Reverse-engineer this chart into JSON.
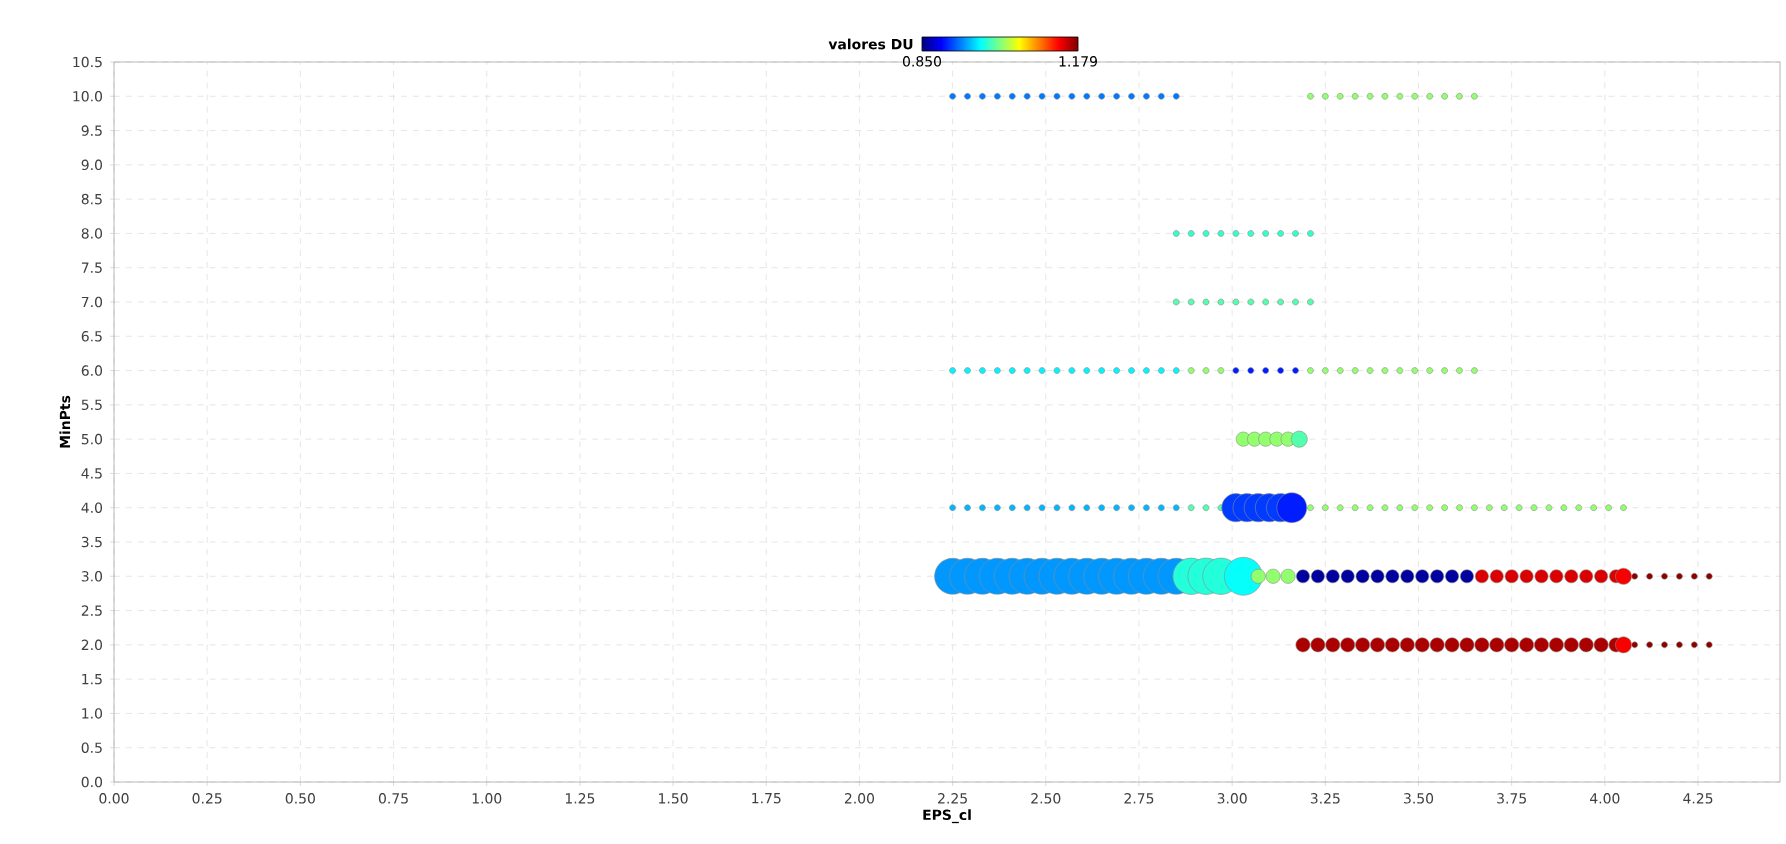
{
  "chart_data": {
    "type": "bubble",
    "xlabel": "EPS_cl",
    "ylabel": "MinPts",
    "clabel": "valores DU",
    "clim": [
      0.85,
      1.179
    ],
    "cticks": [
      {
        "value": 0.85,
        "label": "0.850"
      },
      1.179
    ],
    "xlim": [
      0,
      4.47
    ],
    "ylim": [
      0,
      10.5
    ],
    "xticks": [
      {
        "value": 0,
        "label": "0.00"
      },
      {
        "value": 0.25,
        "label": "0.25"
      },
      {
        "value": 0.5,
        "label": "0.50"
      },
      {
        "value": 0.75,
        "label": "0.75"
      },
      {
        "value": 1,
        "label": "1.00"
      },
      {
        "value": 1.25,
        "label": "1.25"
      },
      {
        "value": 1.5,
        "label": "1.50"
      },
      {
        "value": 1.75,
        "label": "1.75"
      },
      {
        "value": 2,
        "label": "2.00"
      },
      {
        "value": 2.25,
        "label": "2.25"
      },
      {
        "value": 2.5,
        "label": "2.50"
      },
      {
        "value": 2.75,
        "label": "2.75"
      },
      {
        "value": 3,
        "label": "3.00"
      },
      {
        "value": 3.25,
        "label": "3.25"
      },
      {
        "value": 3.5,
        "label": "3.50"
      },
      {
        "value": 3.75,
        "label": "3.75"
      },
      {
        "value": 4,
        "label": "4.00"
      },
      {
        "value": 4.25,
        "label": "4.25"
      }
    ],
    "yticks": [
      {
        "value": 0,
        "label": "0.0"
      },
      0.5,
      {
        "value": 1,
        "label": "1.0"
      },
      1.5,
      {
        "value": 2,
        "label": "2.0"
      },
      2.5,
      {
        "value": 3,
        "label": "3.0"
      },
      3.5,
      {
        "value": 4,
        "label": "4.0"
      },
      4.5,
      {
        "value": 5,
        "label": "5.0"
      },
      5.5,
      {
        "value": 6,
        "label": "6.0"
      },
      6.5,
      {
        "value": 7,
        "label": "7.0"
      },
      7.5,
      {
        "value": 8,
        "label": "8.0"
      },
      8.5,
      {
        "value": 9,
        "label": "9.0"
      },
      9.5,
      {
        "value": 10,
        "label": "10.0"
      },
      10.5
    ],
    "grid": true,
    "marker": "circle",
    "series": [
      {
        "x": [
          2.25,
          2.29,
          2.33,
          2.37,
          2.41,
          2.45,
          2.49,
          2.53,
          2.57,
          2.61,
          2.65,
          2.69,
          2.73,
          2.77,
          2.81,
          2.85
        ],
        "values": [
          10,
          10,
          10,
          10,
          10,
          10,
          10,
          10,
          10,
          10,
          10,
          10,
          10,
          10,
          10,
          10
        ],
        "sizes": [
          0.025,
          0.025,
          0.025,
          0.025,
          0.025,
          0.025,
          0.025,
          0.025,
          0.025,
          0.025,
          0.025,
          0.025,
          0.025,
          0.025,
          0.025,
          0.025
        ],
        "cvalues": [
          0.93,
          0.93,
          0.93,
          0.93,
          0.93,
          0.93,
          0.93,
          0.93,
          0.93,
          0.93,
          0.93,
          0.93,
          0.93,
          0.93,
          0.93,
          0.93
        ]
      },
      {
        "x": [
          3.21,
          3.25,
          3.29,
          3.33,
          3.37,
          3.41,
          3.45,
          3.49,
          3.53,
          3.57,
          3.61,
          3.65
        ],
        "values": [
          10,
          10,
          10,
          10,
          10,
          10,
          10,
          10,
          10,
          10,
          10,
          10
        ],
        "sizes": [
          0.025,
          0.025,
          0.025,
          0.025,
          0.025,
          0.025,
          0.025,
          0.025,
          0.025,
          0.025,
          0.025,
          0.025
        ],
        "cvalues": [
          1.02,
          1.02,
          1.02,
          1.02,
          1.02,
          1.02,
          1.02,
          1.02,
          1.02,
          1.02,
          1.02,
          1.02
        ]
      },
      {
        "x": [
          2.85,
          2.89,
          2.93,
          2.97,
          3.01,
          3.05,
          3.09,
          3.13,
          3.17,
          3.21
        ],
        "values": [
          8,
          8,
          8,
          8,
          8,
          8,
          8,
          8,
          8,
          8
        ],
        "sizes": [
          0.025,
          0.025,
          0.025,
          0.025,
          0.025,
          0.025,
          0.025,
          0.025,
          0.025,
          0.025
        ],
        "cvalues": [
          0.99,
          0.99,
          0.99,
          0.99,
          0.99,
          0.99,
          0.99,
          0.99,
          0.99,
          0.99
        ]
      },
      {
        "x": [
          2.85,
          2.89,
          2.93,
          2.97,
          3.01,
          3.05,
          3.09,
          3.13,
          3.17,
          3.21
        ],
        "values": [
          7,
          7,
          7,
          7,
          7,
          7,
          7,
          7,
          7,
          7
        ],
        "sizes": [
          0.025,
          0.025,
          0.025,
          0.025,
          0.025,
          0.025,
          0.025,
          0.025,
          0.025,
          0.025
        ],
        "cvalues": [
          1.0,
          1.0,
          1.0,
          1.0,
          1.0,
          1.0,
          1.0,
          1.0,
          1.0,
          1.0
        ]
      },
      {
        "x": [
          2.25,
          2.29,
          2.33,
          2.37,
          2.41,
          2.45,
          2.49,
          2.53,
          2.57,
          2.61,
          2.65,
          2.69,
          2.73,
          2.77,
          2.81,
          2.85
        ],
        "values": [
          6,
          6,
          6,
          6,
          6,
          6,
          6,
          6,
          6,
          6,
          6,
          6,
          6,
          6,
          6,
          6
        ],
        "sizes": [
          0.025,
          0.025,
          0.025,
          0.025,
          0.025,
          0.025,
          0.025,
          0.025,
          0.025,
          0.025,
          0.025,
          0.025,
          0.025,
          0.025,
          0.025,
          0.025
        ],
        "cvalues": [
          0.97,
          0.97,
          0.97,
          0.97,
          0.97,
          0.97,
          0.97,
          0.97,
          0.97,
          0.97,
          0.97,
          0.97,
          0.97,
          0.97,
          0.97,
          0.97
        ]
      },
      {
        "x": [
          2.89,
          2.93,
          2.97
        ],
        "values": [
          6,
          6,
          6
        ],
        "sizes": [
          0.025,
          0.025,
          0.025
        ],
        "cvalues": [
          1.02,
          1.02,
          1.02
        ]
      },
      {
        "x": [
          3.01,
          3.05,
          3.09,
          3.13,
          3.17
        ],
        "values": [
          6,
          6,
          6,
          6,
          6
        ],
        "sizes": [
          0.025,
          0.025,
          0.025,
          0.025,
          0.025
        ],
        "cvalues": [
          0.9,
          0.9,
          0.9,
          0.9,
          0.9
        ]
      },
      {
        "x": [
          3.21,
          3.25,
          3.29,
          3.33,
          3.37,
          3.41,
          3.45,
          3.49,
          3.53,
          3.57,
          3.61,
          3.65
        ],
        "values": [
          6,
          6,
          6,
          6,
          6,
          6,
          6,
          6,
          6,
          6,
          6,
          6
        ],
        "sizes": [
          0.025,
          0.025,
          0.025,
          0.025,
          0.025,
          0.025,
          0.025,
          0.025,
          0.025,
          0.025,
          0.025,
          0.025
        ],
        "cvalues": [
          1.02,
          1.02,
          1.02,
          1.02,
          1.02,
          1.02,
          1.02,
          1.02,
          1.02,
          1.02,
          1.02,
          1.02
        ]
      },
      {
        "x": [
          3.03,
          3.06,
          3.09,
          3.12,
          3.15
        ],
        "values": [
          5,
          5,
          5,
          5,
          5
        ],
        "sizes": [
          0.14,
          0.14,
          0.14,
          0.14,
          0.14
        ],
        "cvalues": [
          1.02,
          1.02,
          1.02,
          1.02,
          1.02
        ]
      },
      {
        "x": [
          3.18
        ],
        "values": [
          5
        ],
        "sizes": [
          0.18
        ],
        "cvalues": [
          1.0
        ]
      },
      {
        "x": [
          2.25,
          2.29,
          2.33,
          2.37,
          2.41,
          2.45,
          2.49,
          2.53,
          2.57,
          2.61,
          2.65,
          2.69,
          2.73,
          2.77,
          2.81,
          2.85
        ],
        "values": [
          4,
          4,
          4,
          4,
          4,
          4,
          4,
          4,
          4,
          4,
          4,
          4,
          4,
          4,
          4,
          4
        ],
        "sizes": [
          0.025,
          0.025,
          0.025,
          0.025,
          0.025,
          0.025,
          0.025,
          0.025,
          0.025,
          0.025,
          0.025,
          0.025,
          0.025,
          0.025,
          0.025,
          0.025
        ],
        "cvalues": [
          0.95,
          0.95,
          0.95,
          0.95,
          0.95,
          0.95,
          0.95,
          0.95,
          0.95,
          0.95,
          0.95,
          0.95,
          0.95,
          0.95,
          0.95,
          0.95
        ]
      },
      {
        "x": [
          2.89,
          2.93,
          2.97
        ],
        "values": [
          4,
          4,
          4
        ],
        "sizes": [
          0.025,
          0.025,
          0.025
        ],
        "cvalues": [
          1.0,
          1.0,
          1.0
        ]
      },
      {
        "x": [
          3.21,
          3.25,
          3.29,
          3.33,
          3.37,
          3.41,
          3.45,
          3.49,
          3.53,
          3.57,
          3.61,
          3.65,
          3.69,
          3.73,
          3.77,
          3.81,
          3.85,
          3.89,
          3.93,
          3.97,
          4.01,
          4.05
        ],
        "values": [
          4,
          4,
          4,
          4,
          4,
          4,
          4,
          4,
          4,
          4,
          4,
          4,
          4,
          4,
          4,
          4,
          4,
          4,
          4,
          4,
          4,
          4
        ],
        "sizes": [
          0.025,
          0.025,
          0.025,
          0.025,
          0.025,
          0.025,
          0.025,
          0.025,
          0.025,
          0.025,
          0.025,
          0.025,
          0.025,
          0.025,
          0.025,
          0.025,
          0.025,
          0.025,
          0.025,
          0.025,
          0.025,
          0.025
        ],
        "cvalues": [
          1.02,
          1.02,
          1.02,
          1.02,
          1.02,
          1.02,
          1.02,
          1.02,
          1.02,
          1.02,
          1.02,
          1.02,
          1.02,
          1.02,
          1.02,
          1.02,
          1.02,
          1.02,
          1.02,
          1.02,
          1.02,
          1.02
        ]
      },
      {
        "x": [
          3.01,
          3.04,
          3.07,
          3.1,
          3.13
        ],
        "values": [
          4,
          4,
          4,
          4,
          4
        ],
        "sizes": [
          0.55,
          0.55,
          0.55,
          0.55,
          0.55
        ],
        "cvalues": [
          0.91,
          0.91,
          0.91,
          0.91,
          0.91
        ]
      },
      {
        "x": [
          3.16
        ],
        "values": [
          4
        ],
        "sizes": [
          0.62
        ],
        "cvalues": [
          0.9
        ]
      },
      {
        "x": [
          2.25,
          2.29,
          2.33,
          2.37,
          2.41,
          2.45,
          2.49,
          2.53,
          2.57,
          2.61,
          2.65,
          2.69,
          2.73,
          2.77,
          2.81,
          2.85
        ],
        "values": [
          3,
          3,
          3,
          3,
          3,
          3,
          3,
          3,
          3,
          3,
          3,
          3,
          3,
          3,
          3,
          3
        ],
        "sizes": [
          0.9,
          0.9,
          0.9,
          0.9,
          0.9,
          0.9,
          0.9,
          0.9,
          0.9,
          0.9,
          0.9,
          0.9,
          0.9,
          0.9,
          0.9,
          0.9
        ],
        "cvalues": [
          0.94,
          0.94,
          0.94,
          0.94,
          0.94,
          0.94,
          0.94,
          0.94,
          0.94,
          0.94,
          0.94,
          0.94,
          0.94,
          0.94,
          0.94,
          0.94
        ]
      },
      {
        "x": [
          2.89,
          2.93,
          2.97
        ],
        "values": [
          3,
          3,
          3
        ],
        "sizes": [
          0.92,
          0.92,
          0.92
        ],
        "cvalues": [
          0.985,
          0.985,
          0.985
        ]
      },
      {
        "x": [
          3.03
        ],
        "values": [
          3
        ],
        "sizes": [
          1
        ],
        "cvalues": [
          0.975
        ]
      },
      {
        "x": [
          3.07,
          3.11,
          3.15
        ],
        "values": [
          3,
          3,
          3
        ],
        "sizes": [
          0.14,
          0.14,
          0.14
        ],
        "cvalues": [
          1.02,
          1.02,
          1.02
        ]
      },
      {
        "x": [
          3.19,
          3.23,
          3.27,
          3.31,
          3.35,
          3.39,
          3.43,
          3.47,
          3.51,
          3.55,
          3.59,
          3.63
        ],
        "values": [
          3,
          3,
          3,
          3,
          3,
          3,
          3,
          3,
          3,
          3,
          3,
          3
        ],
        "sizes": [
          0.12,
          0.12,
          0.12,
          0.12,
          0.12,
          0.12,
          0.12,
          0.12,
          0.12,
          0.12,
          0.12,
          0.12
        ],
        "cvalues": [
          0.86,
          0.86,
          0.86,
          0.86,
          0.86,
          0.86,
          0.86,
          0.86,
          0.86,
          0.86,
          0.86,
          0.86
        ]
      },
      {
        "x": [
          3.67,
          3.71,
          3.75,
          3.79,
          3.83,
          3.87,
          3.91,
          3.95,
          3.99,
          4.03
        ],
        "values": [
          3,
          3,
          3,
          3,
          3,
          3,
          3,
          3,
          3,
          3
        ],
        "sizes": [
          0.12,
          0.12,
          0.12,
          0.12,
          0.12,
          0.12,
          0.12,
          0.12,
          0.12,
          0.12
        ],
        "cvalues": [
          1.15,
          1.15,
          1.15,
          1.15,
          1.15,
          1.15,
          1.15,
          1.15,
          1.15,
          1.15
        ]
      },
      {
        "x": [
          4.08,
          4.12,
          4.16,
          4.2,
          4.24,
          4.28
        ],
        "values": [
          3,
          3,
          3,
          3,
          3,
          3
        ],
        "sizes": [
          0.025,
          0.025,
          0.025,
          0.025,
          0.025,
          0.025
        ],
        "cvalues": [
          1.175,
          1.175,
          1.175,
          1.175,
          1.175,
          1.175
        ]
      },
      {
        "x": [
          4.05
        ],
        "values": [
          3
        ],
        "sizes": [
          0.18
        ],
        "cvalues": [
          1.14
        ]
      },
      {
        "x": [
          3.19,
          3.23,
          3.27,
          3.31,
          3.35,
          3.39,
          3.43,
          3.47,
          3.51,
          3.55,
          3.59,
          3.63,
          3.67,
          3.71,
          3.75,
          3.79,
          3.83,
          3.87,
          3.91,
          3.95,
          3.99,
          4.03
        ],
        "values": [
          2,
          2,
          2,
          2,
          2,
          2,
          2,
          2,
          2,
          2,
          2,
          2,
          2,
          2,
          2,
          2,
          2,
          2,
          2,
          2,
          2,
          2
        ],
        "sizes": [
          0.14,
          0.14,
          0.14,
          0.14,
          0.14,
          0.14,
          0.14,
          0.14,
          0.14,
          0.14,
          0.14,
          0.14,
          0.14,
          0.14,
          0.14,
          0.14,
          0.14,
          0.14,
          0.14,
          0.14,
          0.14,
          0.14
        ],
        "cvalues": [
          1.165,
          1.165,
          1.165,
          1.165,
          1.165,
          1.165,
          1.165,
          1.165,
          1.165,
          1.165,
          1.165,
          1.165,
          1.165,
          1.165,
          1.165,
          1.165,
          1.165,
          1.165,
          1.165,
          1.165,
          1.165,
          1.165
        ]
      },
      {
        "x": [
          4.08,
          4.12,
          4.16,
          4.2,
          4.24,
          4.28
        ],
        "values": [
          2,
          2,
          2,
          2,
          2,
          2
        ],
        "sizes": [
          0.025,
          0.025,
          0.025,
          0.025,
          0.025,
          0.025
        ],
        "cvalues": [
          1.175,
          1.175,
          1.175,
          1.175,
          1.175,
          1.175
        ]
      },
      {
        "x": [
          4.05
        ],
        "values": [
          2
        ],
        "sizes": [
          0.18
        ],
        "cvalues": [
          1.14
        ]
      }
    ]
  }
}
